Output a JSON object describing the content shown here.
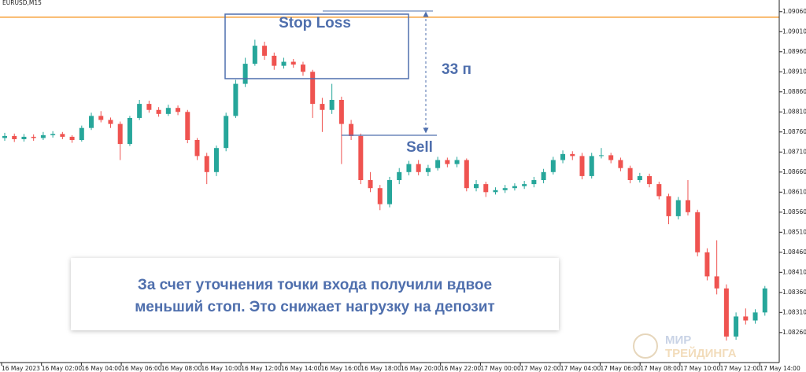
{
  "chart_data": {
    "type": "candlestick",
    "symbol": "EURUSD,M15",
    "up_color": "#26a69a",
    "down_color": "#ef5350",
    "ylim": [
      1.08191,
      1.09089
    ],
    "yticks": [
      {
        "value": 1.0906,
        "label": "1.09060"
      },
      {
        "value": 1.0901,
        "label": "1.09010"
      },
      {
        "value": 1.0896,
        "label": "1.08960"
      },
      {
        "value": 1.0891,
        "label": "1.08910"
      },
      {
        "value": 1.0886,
        "label": "1.08860"
      },
      {
        "value": 1.0881,
        "label": "1.08810"
      },
      {
        "value": 1.0876,
        "label": "1.08760"
      },
      {
        "value": 1.0871,
        "label": "1.08710"
      },
      {
        "value": 1.0866,
        "label": "1.08660"
      },
      {
        "value": 1.0861,
        "label": "1.08610"
      },
      {
        "value": 1.0856,
        "label": "1.08560"
      },
      {
        "value": 1.0851,
        "label": "1.08510"
      },
      {
        "value": 1.0846,
        "label": "1.08460"
      },
      {
        "value": 1.0841,
        "label": "1.08410"
      },
      {
        "value": 1.0836,
        "label": "1.08360"
      },
      {
        "value": 1.0831,
        "label": "1.08310"
      },
      {
        "value": 1.0826,
        "label": "1.08260"
      }
    ],
    "time_labels": [
      "16 May 2023",
      "16 May 02:00",
      "16 May 04:00",
      "16 May 06:00",
      "16 May 08:00",
      "16 May 10:00",
      "16 May 12:00",
      "16 May 14:00",
      "16 May 16:00",
      "16 May 18:00",
      "16 May 20:00",
      "16 May 22:00",
      "17 May 00:00",
      "17 May 02:00",
      "17 May 04:00",
      "17 May 06:00",
      "17 May 08:00",
      "17 May 10:00",
      "17 May 12:00",
      "17 May 14:00"
    ],
    "level_line": {
      "value": 1.09046,
      "color": "#f7a23b"
    },
    "annotations": {
      "stop_loss": "Stop Loss",
      "distance": "33 п",
      "sell": "Sell",
      "note": [
        "За счет уточнения точки входа получили вдвое",
        "меньший стоп. Это снижает нагрузку на депозит"
      ],
      "watermark": [
        "МИР",
        "ТРЕЙДИНГА"
      ]
    },
    "ohlc": [
      [
        1.08745,
        1.08758,
        1.08738,
        1.0875
      ],
      [
        1.0875,
        1.08756,
        1.08735,
        1.08742
      ],
      [
        1.08742,
        1.08755,
        1.08736,
        1.08748
      ],
      [
        1.08748,
        1.08754,
        1.08738,
        1.08745
      ],
      [
        1.08745,
        1.0876,
        1.0874,
        1.08752
      ],
      [
        1.08752,
        1.08762,
        1.08746,
        1.08755
      ],
      [
        1.08755,
        1.0876,
        1.08742,
        1.08748
      ],
      [
        1.08748,
        1.08752,
        1.08733,
        1.0874
      ],
      [
        1.0874,
        1.08776,
        1.08736,
        1.0877
      ],
      [
        1.0877,
        1.08808,
        1.08765,
        1.088
      ],
      [
        1.088,
        1.08812,
        1.08784,
        1.0879
      ],
      [
        1.0879,
        1.08796,
        1.0877,
        1.0878
      ],
      [
        1.0878,
        1.08786,
        1.0869,
        1.0873
      ],
      [
        1.0873,
        1.088,
        1.08725,
        1.08795
      ],
      [
        1.08795,
        1.0884,
        1.0879,
        1.0883
      ],
      [
        1.0883,
        1.08838,
        1.08808,
        1.08815
      ],
      [
        1.08815,
        1.08822,
        1.08798,
        1.08805
      ],
      [
        1.08805,
        1.08828,
        1.088,
        1.0882
      ],
      [
        1.0882,
        1.08826,
        1.08802,
        1.0881
      ],
      [
        1.0881,
        1.08815,
        1.08732,
        1.0874
      ],
      [
        1.0874,
        1.08745,
        1.0869,
        1.087
      ],
      [
        1.087,
        1.08708,
        1.0863,
        1.0866
      ],
      [
        1.0866,
        1.08726,
        1.0865,
        1.0872
      ],
      [
        1.0872,
        1.08808,
        1.08712,
        1.088
      ],
      [
        1.088,
        1.0889,
        1.08795,
        1.0888
      ],
      [
        1.0888,
        1.08945,
        1.08872,
        1.0893
      ],
      [
        1.0893,
        1.0899,
        1.08925,
        1.08975
      ],
      [
        1.08975,
        1.08985,
        1.0894,
        1.0895
      ],
      [
        1.0895,
        1.08958,
        1.08915,
        1.08925
      ],
      [
        1.08925,
        1.08945,
        1.08918,
        1.08935
      ],
      [
        1.08935,
        1.08942,
        1.0892,
        1.08928
      ],
      [
        1.08928,
        1.08935,
        1.089,
        1.0891
      ],
      [
        1.0891,
        1.08915,
        1.08795,
        1.0883
      ],
      [
        1.0883,
        1.08845,
        1.0876,
        1.08815
      ],
      [
        1.08815,
        1.0888,
        1.08805,
        1.0884
      ],
      [
        1.0884,
        1.08848,
        1.0868,
        1.0878
      ],
      [
        1.0878,
        1.0879,
        1.0874,
        1.0875
      ],
      [
        1.0875,
        1.08756,
        1.0863,
        1.0864
      ],
      [
        1.0864,
        1.0866,
        1.0861,
        1.0862
      ],
      [
        1.0862,
        1.08628,
        1.08565,
        1.0858
      ],
      [
        1.0858,
        1.08648,
        1.08572,
        1.0864
      ],
      [
        1.0864,
        1.0867,
        1.0863,
        1.0866
      ],
      [
        1.0866,
        1.08688,
        1.08652,
        1.0868
      ],
      [
        1.0868,
        1.0869,
        1.08652,
        1.0866
      ],
      [
        1.0866,
        1.08678,
        1.0865,
        1.0867
      ],
      [
        1.0867,
        1.08698,
        1.08664,
        1.0869
      ],
      [
        1.0869,
        1.08696,
        1.08672,
        1.0868
      ],
      [
        1.0868,
        1.08698,
        1.08672,
        1.0869
      ],
      [
        1.0869,
        1.08694,
        1.08612,
        1.0862
      ],
      [
        1.0862,
        1.0864,
        1.08612,
        1.0863
      ],
      [
        1.0863,
        1.08636,
        1.08598,
        1.0861
      ],
      [
        1.0861,
        1.08622,
        1.08604,
        1.08615
      ],
      [
        1.08615,
        1.08628,
        1.08608,
        1.0862
      ],
      [
        1.0862,
        1.08632,
        1.08614,
        1.08625
      ],
      [
        1.08625,
        1.08638,
        1.08618,
        1.0863
      ],
      [
        1.0863,
        1.08648,
        1.08622,
        1.0864
      ],
      [
        1.0864,
        1.08668,
        1.08632,
        1.0866
      ],
      [
        1.0866,
        1.08698,
        1.08654,
        1.0869
      ],
      [
        1.0869,
        1.08714,
        1.08682,
        1.08705
      ],
      [
        1.08705,
        1.08712,
        1.0869,
        1.087
      ],
      [
        1.087,
        1.08708,
        1.08642,
        1.0865
      ],
      [
        1.0865,
        1.08708,
        1.08644,
        1.087
      ],
      [
        1.087,
        1.0872,
        1.08694,
        1.08702
      ],
      [
        1.08702,
        1.08708,
        1.08682,
        1.0869
      ],
      [
        1.0869,
        1.08696,
        1.08662,
        1.0867
      ],
      [
        1.0867,
        1.08676,
        1.08632,
        1.0864
      ],
      [
        1.0864,
        1.08658,
        1.08634,
        1.0865
      ],
      [
        1.0865,
        1.08656,
        1.08622,
        1.0863
      ],
      [
        1.0863,
        1.08636,
        1.08592,
        1.086
      ],
      [
        1.086,
        1.08606,
        1.0853,
        1.0855
      ],
      [
        1.0855,
        1.08598,
        1.08542,
        1.0859
      ],
      [
        1.0859,
        1.0864,
        1.08552,
        1.0856
      ],
      [
        1.0856,
        1.08566,
        1.0845,
        1.0846
      ],
      [
        1.0846,
        1.0847,
        1.0839,
        1.084
      ],
      [
        1.084,
        1.0849,
        1.08355,
        1.0837
      ],
      [
        1.0837,
        1.0838,
        1.0824,
        1.0825
      ],
      [
        1.0825,
        1.0831,
        1.08242,
        1.083
      ],
      [
        1.083,
        1.0832,
        1.0828,
        1.0829
      ],
      [
        1.0829,
        1.08318,
        1.08282,
        1.0831
      ],
      [
        1.0831,
        1.08376,
        1.08302,
        1.0837
      ]
    ]
  }
}
